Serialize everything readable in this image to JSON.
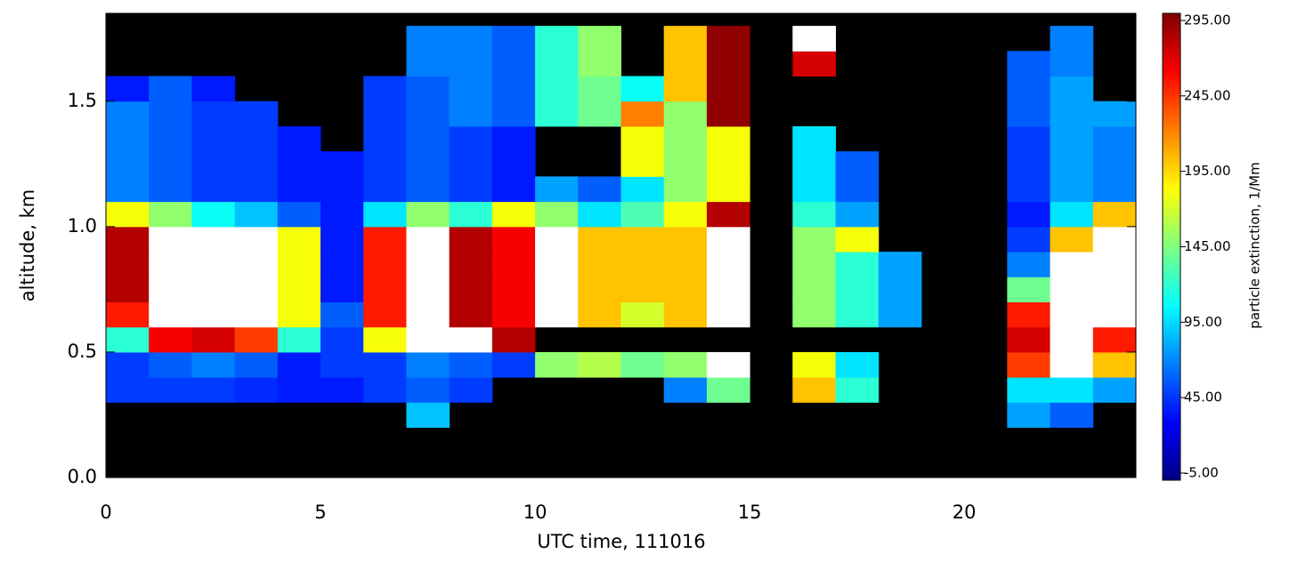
{
  "chart_data": {
    "type": "heatmap",
    "xlabel": "UTC time, 111016",
    "ylabel": "altitude, km",
    "colorbar_label": "particle extinction, 1/Mm",
    "xlim": [
      0,
      24
    ],
    "ylim": [
      0,
      1.85
    ],
    "xticks": [
      0,
      5,
      10,
      15,
      20
    ],
    "yticks": [
      {
        "value": 0,
        "label": "0.0"
      },
      {
        "value": 0.5,
        "label": "0.5"
      },
      {
        "value": 1,
        "label": "1.0"
      },
      {
        "value": 1.5,
        "label": "1.5"
      }
    ],
    "clim": [
      -5,
      295
    ],
    "cticks": [
      {
        "value": -5,
        "label": "-5.00"
      },
      {
        "value": 45,
        "label": "45.00"
      },
      {
        "value": 95,
        "label": "95.00"
      },
      {
        "value": 145,
        "label": "145.00"
      },
      {
        "value": 195,
        "label": "195.00"
      },
      {
        "value": 245,
        "label": "245.00"
      },
      {
        "value": 295,
        "label": "295.00"
      }
    ],
    "colormap": "jet",
    "over_color": "#ffffff",
    "missing_color": "#000000",
    "x_bins": [
      0,
      1,
      2,
      3,
      4,
      5,
      6,
      7,
      8,
      9,
      10,
      11,
      12,
      13,
      14,
      15,
      16,
      17,
      18,
      19,
      20,
      21,
      22,
      23,
      24
    ],
    "y_bins": [
      0,
      0.1,
      0.2,
      0.3,
      0.4,
      0.5,
      0.6,
      0.7,
      0.8,
      0.9,
      1.0,
      1.1,
      1.2,
      1.3,
      1.4,
      1.5,
      1.6,
      1.7,
      1.8
    ],
    "z": [
      [
        null,
        null,
        null,
        null,
        null,
        null,
        null,
        null,
        null,
        null,
        null,
        null,
        null,
        null,
        null,
        null,
        null,
        null,
        null,
        null,
        null,
        null,
        null,
        null
      ],
      [
        null,
        null,
        null,
        null,
        null,
        null,
        null,
        null,
        null,
        null,
        null,
        null,
        null,
        null,
        null,
        null,
        null,
        null,
        null,
        null,
        null,
        null,
        null,
        null
      ],
      [
        null,
        null,
        null,
        null,
        null,
        null,
        null,
        90,
        null,
        null,
        null,
        null,
        null,
        null,
        null,
        null,
        null,
        null,
        null,
        null,
        null,
        80,
        60,
        null
      ],
      [
        50,
        50,
        50,
        45,
        40,
        40,
        50,
        60,
        50,
        null,
        null,
        null,
        null,
        70,
        140,
        null,
        200,
        120,
        null,
        null,
        null,
        100,
        100,
        80
      ],
      [
        50,
        60,
        70,
        60,
        40,
        50,
        50,
        70,
        60,
        50,
        150,
        160,
        140,
        150,
        320,
        null,
        180,
        100,
        null,
        null,
        null,
        240,
        320,
        200
      ],
      [
        120,
        260,
        270,
        240,
        120,
        50,
        180,
        320,
        300,
        280,
        null,
        null,
        null,
        null,
        null,
        null,
        null,
        null,
        null,
        null,
        null,
        270,
        320,
        250
      ],
      [
        250,
        320,
        320,
        320,
        180,
        60,
        250,
        320,
        280,
        260,
        320,
        200,
        170,
        200,
        320,
        null,
        150,
        120,
        80,
        null,
        null,
        250,
        300,
        320
      ],
      [
        280,
        320,
        320,
        320,
        180,
        40,
        250,
        320,
        280,
        260,
        320,
        200,
        200,
        200,
        320,
        null,
        150,
        120,
        80,
        null,
        null,
        140,
        300,
        320
      ],
      [
        280,
        320,
        320,
        320,
        180,
        40,
        250,
        320,
        280,
        260,
        320,
        200,
        200,
        200,
        320,
        null,
        150,
        120,
        80,
        null,
        null,
        70,
        300,
        320
      ],
      [
        280,
        320,
        320,
        320,
        180,
        40,
        250,
        320,
        280,
        260,
        320,
        200,
        200,
        200,
        320,
        null,
        150,
        180,
        null,
        null,
        null,
        50,
        200,
        320
      ],
      [
        180,
        150,
        110,
        90,
        60,
        40,
        100,
        150,
        120,
        180,
        150,
        100,
        130,
        180,
        280,
        null,
        120,
        80,
        null,
        null,
        null,
        40,
        100,
        200
      ],
      [
        70,
        60,
        50,
        50,
        40,
        40,
        50,
        60,
        50,
        40,
        80,
        60,
        100,
        150,
        180,
        null,
        100,
        60,
        null,
        null,
        null,
        50,
        80,
        70
      ],
      [
        70,
        60,
        50,
        50,
        40,
        40,
        50,
        60,
        50,
        40,
        null,
        null,
        180,
        150,
        180,
        null,
        100,
        60,
        null,
        null,
        null,
        50,
        80,
        70
      ],
      [
        70,
        60,
        50,
        50,
        40,
        null,
        50,
        60,
        50,
        40,
        null,
        null,
        180,
        150,
        180,
        null,
        100,
        null,
        null,
        null,
        null,
        50,
        80,
        70
      ],
      [
        70,
        60,
        50,
        50,
        null,
        null,
        50,
        60,
        70,
        60,
        120,
        140,
        220,
        150,
        290,
        null,
        null,
        null,
        null,
        null,
        null,
        60,
        80,
        80
      ],
      [
        40,
        60,
        40,
        null,
        null,
        null,
        50,
        60,
        70,
        60,
        120,
        140,
        110,
        200,
        290,
        null,
        null,
        null,
        null,
        null,
        null,
        60,
        80,
        null
      ],
      [
        null,
        null,
        null,
        null,
        null,
        null,
        null,
        70,
        70,
        60,
        120,
        150,
        null,
        200,
        290,
        null,
        270,
        null,
        null,
        null,
        null,
        60,
        70,
        null
      ],
      [
        null,
        null,
        null,
        null,
        null,
        null,
        null,
        70,
        70,
        60,
        120,
        150,
        null,
        200,
        290,
        null,
        320,
        null,
        null,
        null,
        null,
        null,
        70,
        null
      ]
    ]
  }
}
